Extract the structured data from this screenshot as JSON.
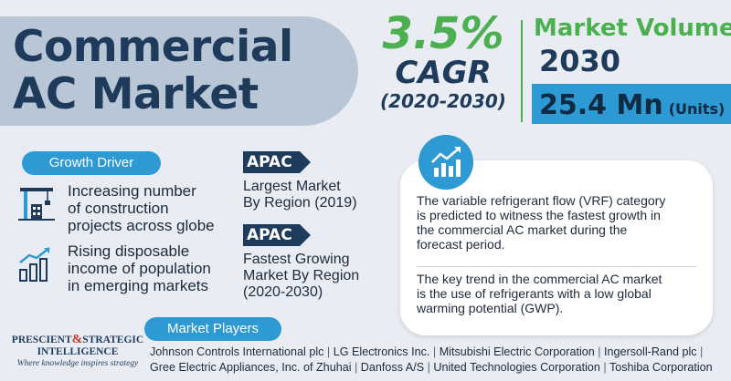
{
  "title": {
    "line1": "Commercial",
    "line2": "AC Market"
  },
  "cagr": {
    "value": "3.5%",
    "label": "CAGR",
    "period": "(2020-2030)"
  },
  "market_volume": {
    "title": "Market Volume",
    "year": "2030",
    "value": "25.4 Mn",
    "unit": "(Units)"
  },
  "growth_driver": {
    "label": "Growth Driver",
    "items": [
      {
        "icon": "construction-crane-icon",
        "lines": [
          "Increasing number",
          "of construction",
          "projects across globe"
        ]
      },
      {
        "icon": "rising-bar-chart-icon",
        "lines": [
          "Rising disposable",
          "income of population",
          "in emerging markets"
        ]
      }
    ]
  },
  "regions": [
    {
      "tag": "APAC",
      "lines": [
        "Largest Market",
        "By Region (2019)"
      ]
    },
    {
      "tag": "APAC",
      "lines": [
        "Fastest Growing",
        "Market By Region",
        "(2020-2030)"
      ]
    }
  ],
  "insights": {
    "icon": "trend-chart-icon",
    "items": [
      {
        "lines": [
          "The variable refrigerant flow (VRF) category",
          "is predicted to witness the fastest growth in",
          "the commercial AC market during the",
          "forecast period."
        ]
      },
      {
        "lines": [
          "The key trend in the commercial AC market",
          "is the use of refrigerants with a low global",
          "warming potential (GWP)."
        ]
      }
    ]
  },
  "market_players": {
    "label": "Market Players",
    "rows": [
      [
        "Johnson Controls International plc",
        "LG Electronics Inc.",
        "Mitsubishi Electric Corporation",
        "Ingersoll-Rand plc"
      ],
      [
        "Gree Electric Appliances, Inc. of Zhuhai",
        "Danfoss A/S",
        "United Technologies Corporation",
        "Toshiba Corporation"
      ]
    ]
  },
  "logo": {
    "part1": "PRESCIENT",
    "amp": "&",
    "part2": "STRATEGIC",
    "line2": "INTELLIGENCE",
    "tagline": "Where knowledge inspires strategy"
  },
  "colors": {
    "navy": "#1f3b5c",
    "green": "#4caf50",
    "blue": "#2e9ad3",
    "pill_bg": "#b9c6d6",
    "background": "#e9edf3"
  }
}
